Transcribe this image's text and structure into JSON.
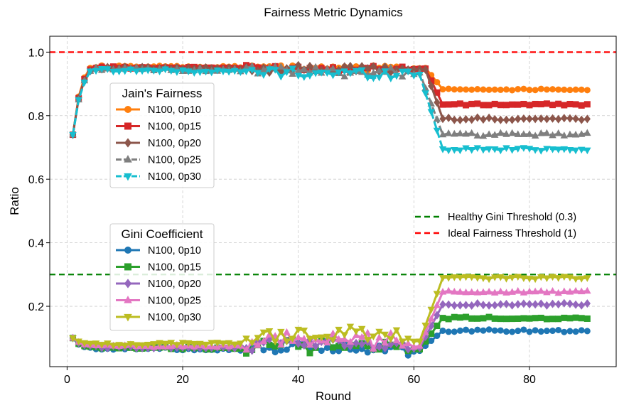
{
  "chart_data": {
    "type": "line",
    "title": "Fairness Metric Dynamics",
    "xlabel": "Round",
    "ylabel": "Ratio",
    "xlim": [
      -3,
      95
    ],
    "ylim": [
      0.01,
      1.05
    ],
    "xticks": [
      0,
      20,
      40,
      60,
      80
    ],
    "yticks": [
      0.2,
      0.4,
      0.6,
      0.8,
      1.0
    ],
    "grid": true,
    "legends": {
      "jain": {
        "title": "Jain's Fairness",
        "placement": "upper-left"
      },
      "gini": {
        "title": "Gini Coefficient",
        "placement": "lower-left"
      },
      "thresholds": {
        "placement": "right"
      }
    },
    "thresholds": [
      {
        "name": "Healthy Gini Threshold (0.3)",
        "y": 0.3,
        "color": "#008000"
      },
      {
        "name": "Ideal Fairness Threshold (1)",
        "y": 1.0,
        "color": "#ff0000"
      }
    ],
    "series": [
      {
        "group": "jain",
        "name": "N100, 0p10",
        "color": "#ff7f0e",
        "marker": "circle",
        "dash": false,
        "start": [
          0.74,
          0.86,
          0.92,
          0.95
        ],
        "mid": 0.955,
        "midEnd": 0.95,
        "drop_start": 62,
        "drop_end": 65,
        "plateau": 0.883,
        "noise": 0.003
      },
      {
        "group": "jain",
        "name": "N100, 0p15",
        "color": "#d62728",
        "marker": "square",
        "dash": false,
        "start": [
          0.74,
          0.855,
          0.915,
          0.945
        ],
        "mid": 0.952,
        "midEnd": 0.948,
        "drop_start": 62,
        "drop_end": 65,
        "plateau": 0.835,
        "noise": 0.003
      },
      {
        "group": "jain",
        "name": "N100, 0p20",
        "color": "#8c564b",
        "marker": "diamond",
        "dash": false,
        "start": [
          0.74,
          0.855,
          0.91,
          0.94
        ],
        "mid": 0.95,
        "midEnd": 0.945,
        "drop_start": 62,
        "drop_end": 65,
        "plateau": 0.79,
        "noise": 0.004
      },
      {
        "group": "jain",
        "name": "N100, 0p25",
        "color": "#7f7f7f",
        "marker": "triangle-up",
        "dash": true,
        "start": [
          0.74,
          0.85,
          0.91,
          0.94
        ],
        "mid": 0.948,
        "midEnd": 0.935,
        "drop_start": 61,
        "drop_end": 65,
        "plateau": 0.74,
        "noise": 0.005
      },
      {
        "group": "jain",
        "name": "N100, 0p30",
        "color": "#17becf",
        "marker": "triangle-down",
        "dash": true,
        "start": [
          0.74,
          0.85,
          0.905,
          0.94
        ],
        "mid": 0.945,
        "midEnd": 0.93,
        "drop_start": 61,
        "drop_end": 65,
        "plateau": 0.695,
        "noise": 0.005
      },
      {
        "group": "gini",
        "name": "N100, 0p10",
        "color": "#1f77b4",
        "marker": "circle",
        "dash": false,
        "start": [
          0.1,
          0.08,
          0.072,
          0.07
        ],
        "mid": 0.068,
        "midEnd": 0.06,
        "drop_start": 61,
        "drop_end": 65,
        "plateau": 0.123,
        "noise": 0.004
      },
      {
        "group": "gini",
        "name": "N100, 0p15",
        "color": "#2ca02c",
        "marker": "square",
        "dash": false,
        "start": [
          0.1,
          0.082,
          0.075,
          0.073
        ],
        "mid": 0.07,
        "midEnd": 0.065,
        "drop_start": 61,
        "drop_end": 65,
        "plateau": 0.163,
        "noise": 0.004
      },
      {
        "group": "gini",
        "name": "N100, 0p20",
        "color": "#9467bd",
        "marker": "diamond",
        "dash": false,
        "start": [
          0.1,
          0.085,
          0.078,
          0.076
        ],
        "mid": 0.072,
        "midEnd": 0.07,
        "drop_start": 61,
        "drop_end": 65,
        "plateau": 0.206,
        "noise": 0.004
      },
      {
        "group": "gini",
        "name": "N100, 0p25",
        "color": "#e377c2",
        "marker": "triangle-up",
        "dash": false,
        "start": [
          0.1,
          0.087,
          0.08,
          0.078
        ],
        "mid": 0.075,
        "midEnd": 0.075,
        "drop_start": 61,
        "drop_end": 65,
        "plateau": 0.245,
        "noise": 0.004
      },
      {
        "group": "gini",
        "name": "N100, 0p30",
        "color": "#bcbd22",
        "marker": "triangle-down",
        "dash": false,
        "start": [
          0.1,
          0.09,
          0.085,
          0.083
        ],
        "mid": 0.08,
        "midEnd": 0.09,
        "drop_start": 61,
        "drop_end": 65,
        "plateau": 0.29,
        "noise": 0.004
      }
    ]
  }
}
